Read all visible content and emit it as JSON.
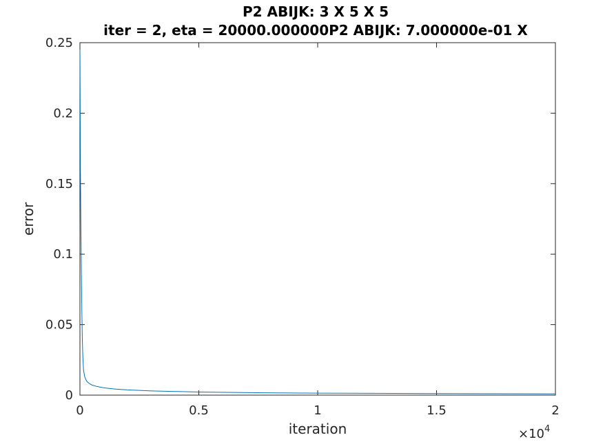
{
  "chart_data": {
    "type": "line",
    "title_line1": "P2 ABIJK: 3 X 5 X 5",
    "title_line2": "iter = 2, eta = 20000.000000P2 ABIJK: 7.000000e-01 X",
    "xlabel": "iteration",
    "ylabel": "error",
    "x_multiplier_base": "×10",
    "x_multiplier_exp": "4",
    "xlim": [
      0,
      20000
    ],
    "ylim": [
      0,
      0.25
    ],
    "xticks": [
      0,
      5000,
      10000,
      15000,
      20000
    ],
    "xtick_labels": [
      "0",
      "0.5",
      "1",
      "1.5",
      "2"
    ],
    "yticks": [
      0,
      0.05,
      0.1,
      0.15,
      0.2,
      0.25
    ],
    "ytick_labels": [
      "0",
      "0.05",
      "0.1",
      "0.15",
      "0.2",
      "0.25"
    ],
    "grid": false,
    "line_color": "#0072BD",
    "series": [
      {
        "x": [
          1,
          20,
          40,
          60,
          80,
          100,
          120,
          150,
          200,
          250,
          300,
          400,
          500,
          700,
          1000,
          1500,
          2000,
          3000,
          5000,
          7500,
          10000,
          15000,
          20000
        ],
        "y": [
          0.245,
          0.16,
          0.12,
          0.088,
          0.06,
          0.04,
          0.028,
          0.018,
          0.013,
          0.011,
          0.0095,
          0.0082,
          0.0072,
          0.0062,
          0.0052,
          0.0043,
          0.0037,
          0.003,
          0.0022,
          0.0017,
          0.0014,
          0.0011,
          0.0009
        ]
      }
    ]
  }
}
